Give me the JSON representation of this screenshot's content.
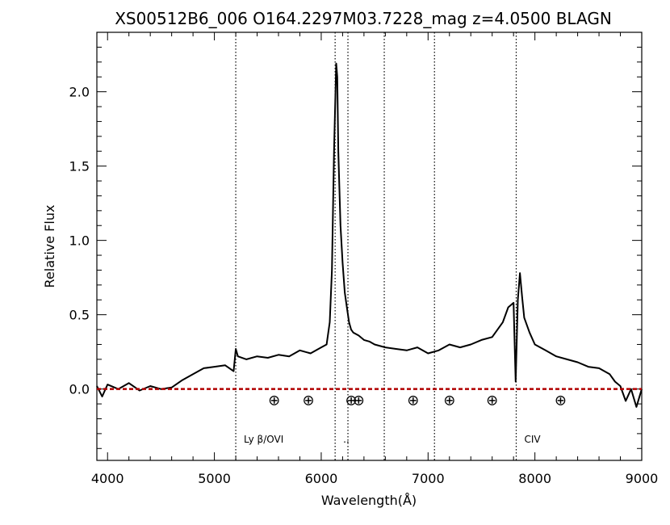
{
  "chart_data": {
    "type": "line",
    "title": "XS00512B6_006  O164.2297M03.7228_mag  z=4.0500  BLAGN",
    "xlabel": "Wavelength(Å)",
    "ylabel": "Relative Flux",
    "xlim": [
      3900,
      9000
    ],
    "ylim": [
      -0.48,
      2.4
    ],
    "x_ticks": [
      4000,
      5000,
      6000,
      7000,
      8000,
      9000
    ],
    "x_tick_labels": [
      "4000",
      "5000",
      "6000",
      "7000",
      "8000",
      "9000"
    ],
    "y_ticks": [
      0.0,
      0.5,
      1.0,
      1.5,
      2.0
    ],
    "y_tick_labels": [
      "0.0",
      "0.5",
      "1.0",
      "1.5",
      "2.0"
    ],
    "grid": false,
    "legend": "none",
    "series": [
      {
        "x": [
          3900,
          3950,
          4000,
          4100,
          4200,
          4300,
          4400,
          4500,
          4600,
          4700,
          4800,
          4900,
          5000,
          5100,
          5180,
          5200,
          5220,
          5300,
          5400,
          5500,
          5600,
          5700,
          5800,
          5900,
          6000,
          6050,
          6080,
          6100,
          6120,
          6140,
          6150,
          6160,
          6180,
          6200,
          6220,
          6240,
          6260,
          6280,
          6300,
          6350,
          6400,
          6450,
          6500,
          6600,
          6700,
          6800,
          6900,
          7000,
          7100,
          7200,
          7300,
          7400,
          7500,
          7600,
          7700,
          7750,
          7800,
          7820,
          7840,
          7860,
          7880,
          7900,
          7950,
          8000,
          8100,
          8200,
          8300,
          8400,
          8500,
          8600,
          8700,
          8750,
          8800,
          8850,
          8900,
          8950,
          9000
        ],
        "y": [
          0.02,
          -0.05,
          0.03,
          0.0,
          0.04,
          -0.01,
          0.02,
          0.0,
          0.01,
          0.06,
          0.1,
          0.14,
          0.15,
          0.16,
          0.12,
          0.27,
          0.22,
          0.2,
          0.22,
          0.21,
          0.23,
          0.22,
          0.26,
          0.24,
          0.28,
          0.3,
          0.45,
          0.8,
          1.6,
          2.19,
          2.1,
          1.6,
          1.1,
          0.85,
          0.65,
          0.55,
          0.45,
          0.4,
          0.38,
          0.36,
          0.33,
          0.32,
          0.3,
          0.28,
          0.27,
          0.26,
          0.28,
          0.24,
          0.26,
          0.3,
          0.28,
          0.3,
          0.33,
          0.35,
          0.45,
          0.55,
          0.58,
          0.05,
          0.6,
          0.78,
          0.62,
          0.48,
          0.38,
          0.3,
          0.26,
          0.22,
          0.2,
          0.18,
          0.15,
          0.14,
          0.1,
          0.05,
          0.02,
          -0.08,
          0.0,
          -0.12,
          0.0
        ]
      }
    ],
    "zero_line": {
      "y": 0.0,
      "color": "#b00000",
      "style": "dashed"
    },
    "vertical_lines": [
      5200,
      6130,
      6250,
      6590,
      7060,
      7825
    ],
    "line_labels": [
      {
        "x": 5200,
        "text": "Ly β/OVI"
      },
      {
        "x": 6130,
        "text": ".."
      },
      {
        "x": 7825,
        "text": "CIV"
      }
    ],
    "telluric_markers": {
      "y": -0.07,
      "x": [
        5560,
        5880,
        6280,
        6350,
        6860,
        7200,
        7600,
        8240
      ],
      "symbol": "⊕"
    }
  },
  "colors": {
    "spectrum": "#000000",
    "zero_line": "#b00000",
    "background": "#ffffff"
  }
}
